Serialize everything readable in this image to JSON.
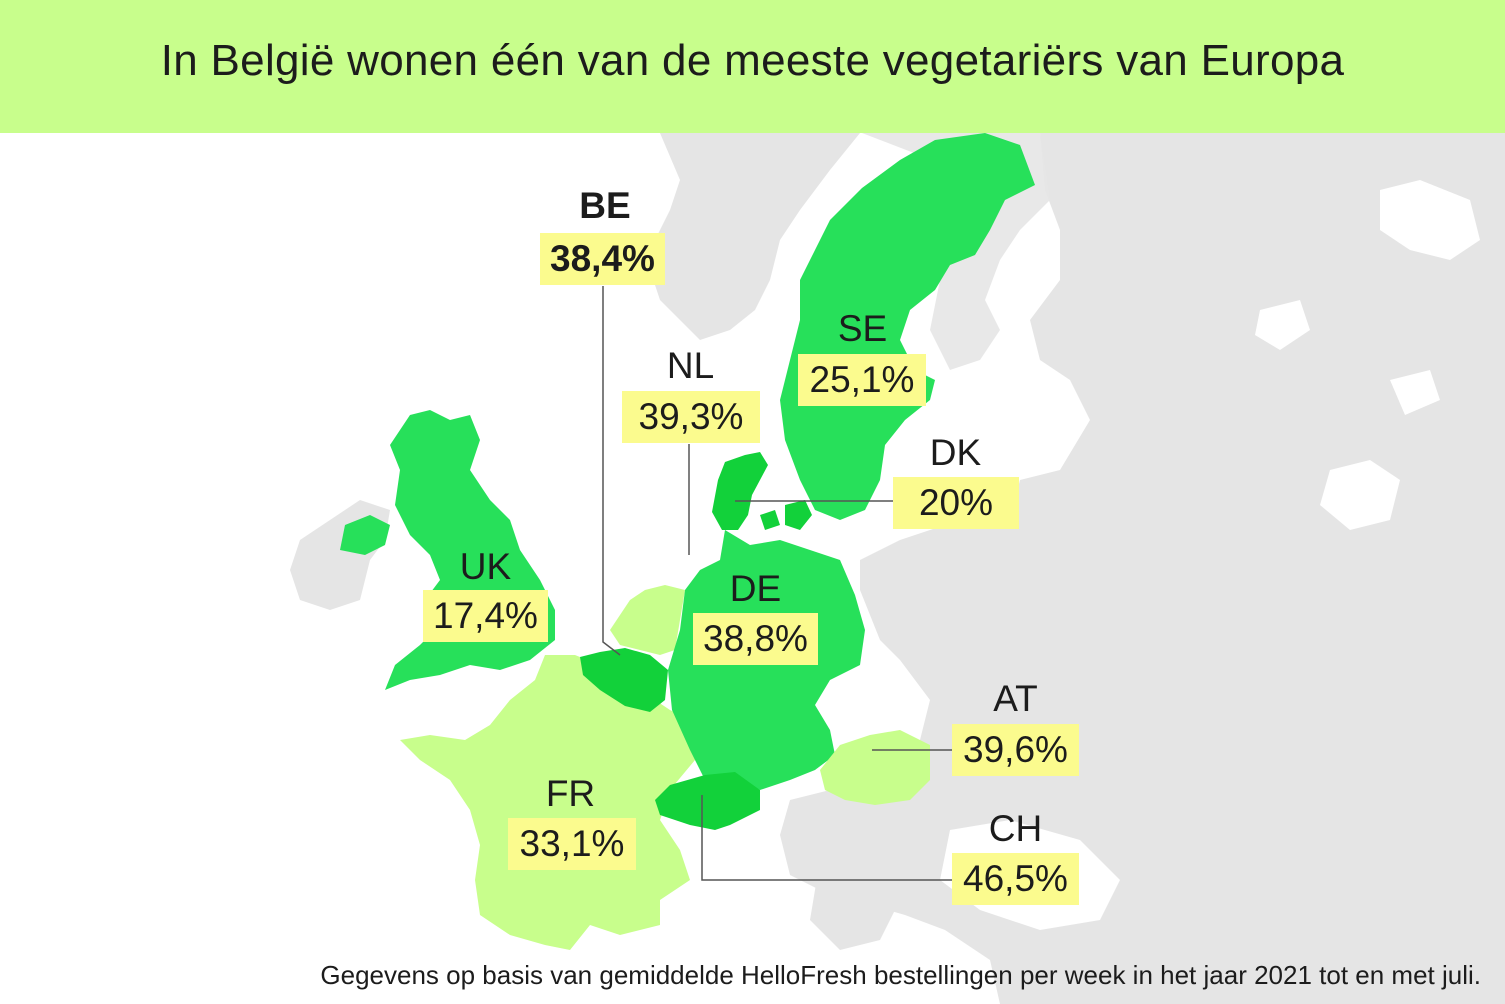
{
  "title": "In België wonen één van de meeste vegetariërs van Europa",
  "countries": {
    "be": {
      "code": "BE",
      "share": "38,4%",
      "color": "#12d13a"
    },
    "nl": {
      "code": "NL",
      "share": "39,3%",
      "color": "#c8fe8c"
    },
    "se": {
      "code": "SE",
      "share": "25,1%",
      "color": "#27e05a"
    },
    "dk": {
      "code": "DK",
      "share": "20%",
      "color": "#12d13a"
    },
    "uk": {
      "code": "UK",
      "share": "17,4%",
      "color": "#27e05a"
    },
    "de": {
      "code": "DE",
      "share": "38,8%",
      "color": "#27e05a"
    },
    "at": {
      "code": "AT",
      "share": "39,6%",
      "color": "#c8fe8c"
    },
    "fr": {
      "code": "FR",
      "share": "33,1%",
      "color": "#c8fe8c"
    },
    "ch": {
      "code": "CH",
      "share": "46,5%",
      "color": "#12d13a"
    }
  },
  "colors": {
    "header": "#c8fe8c",
    "land": "#e5e5e5",
    "value_box": "#fbfb8e"
  },
  "footnote": "Gegevens op basis van gemiddelde HelloFresh bestellingen per week in het jaar 2021 tot en met juli."
}
